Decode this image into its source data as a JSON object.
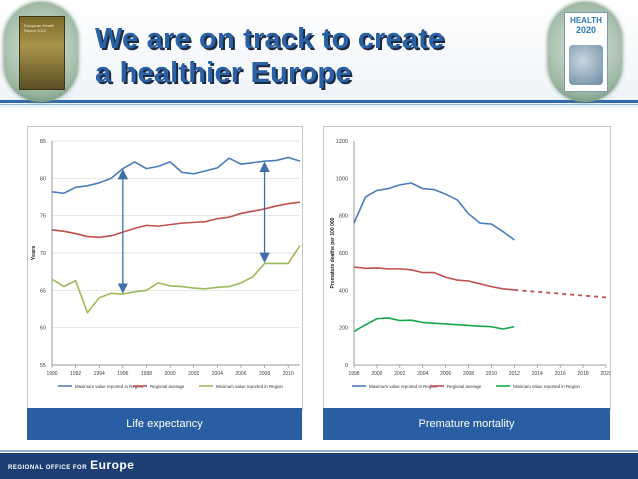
{
  "header": {
    "title_line1": "We are on track to create",
    "title_line2": "a healthier Europe",
    "right_badge_title1": "HEALTH",
    "right_badge_title2": "2020",
    "left_badge_text": "European Health Report 2012"
  },
  "footer": {
    "org_prefix": "REGIONAL OFFICE FOR",
    "org_name": "Europe"
  },
  "captions": {
    "left": "Life expectancy",
    "right": "Premature mortality"
  },
  "colors": {
    "max_series": "#4a7ebb",
    "avg_series": "#c0504d",
    "min_series": "#9bbb59",
    "min_series_right": "#17a84a",
    "arrow": "#3f6fa8",
    "caption_bar": "#2a5ea3"
  },
  "chart_data": [
    {
      "type": "line",
      "title": "Life expectancy",
      "xlabel": "",
      "ylabel": "Years",
      "x": [
        1990,
        1991,
        1992,
        1993,
        1994,
        1995,
        1996,
        1997,
        1998,
        1999,
        2000,
        2001,
        2002,
        2003,
        2004,
        2005,
        2006,
        2007,
        2008,
        2009,
        2010,
        2011
      ],
      "xticks": [
        "1990",
        "1992",
        "1994",
        "1996",
        "1998",
        "2000",
        "2002",
        "2004",
        "2006",
        "2008",
        "2010"
      ],
      "xlim": [
        1990,
        2011
      ],
      "ylim": [
        55,
        85
      ],
      "yticks": [
        "55",
        "60",
        "65",
        "70",
        "75",
        "80",
        "85"
      ],
      "series": [
        {
          "name": "Maximum value reported in Region",
          "values": [
            78.2,
            78.0,
            78.8,
            79.0,
            79.4,
            80.0,
            81.3,
            82.2,
            81.3,
            81.6,
            82.2,
            80.8,
            80.6,
            81.0,
            81.4,
            82.7,
            81.9,
            82.1,
            82.3,
            82.4,
            82.8,
            82.3
          ]
        },
        {
          "name": "Regional average",
          "values": [
            73.1,
            72.9,
            72.6,
            72.2,
            72.1,
            72.3,
            72.8,
            73.3,
            73.7,
            73.6,
            73.8,
            74.0,
            74.1,
            74.2,
            74.6,
            74.8,
            75.3,
            75.6,
            75.9,
            76.3,
            76.6,
            76.8
          ]
        },
        {
          "name": "Minimum value reported in Region",
          "values": [
            66.5,
            65.5,
            66.3,
            62.0,
            64.0,
            64.6,
            64.5,
            64.8,
            65.0,
            66.0,
            65.6,
            65.5,
            65.3,
            65.2,
            65.4,
            65.5,
            66.0,
            66.8,
            68.6,
            68.6,
            68.6,
            71.0
          ]
        }
      ],
      "annotations": [
        {
          "type": "double-arrow",
          "x": 1996,
          "from": 64.5,
          "to": 81.3
        },
        {
          "type": "double-arrow",
          "x": 2008,
          "from": 68.6,
          "to": 82.3
        }
      ],
      "legend": "bottom"
    },
    {
      "type": "line",
      "title": "Premature mortality",
      "xlabel": "",
      "ylabel": "Premature deaths per 100 000",
      "x": [
        1998,
        1999,
        2000,
        2001,
        2002,
        2003,
        2004,
        2005,
        2006,
        2007,
        2008,
        2009,
        2010,
        2011,
        2012
      ],
      "xticks": [
        "1998",
        "2000",
        "2002",
        "2004",
        "2006",
        "2008",
        "2010",
        "2012",
        "2014",
        "2016",
        "2018",
        "2020"
      ],
      "xlim": [
        1998,
        2020
      ],
      "ylim": [
        0,
        1200
      ],
      "yticks": [
        "0",
        "200",
        "400",
        "600",
        "800",
        "1000",
        "1200"
      ],
      "series": [
        {
          "name": "Maximum value reported in Region",
          "values": [
            760,
            900,
            935,
            945,
            965,
            975,
            945,
            940,
            915,
            885,
            810,
            760,
            755,
            715,
            670
          ]
        },
        {
          "name": "Regional average",
          "values": [
            525,
            518,
            520,
            515,
            515,
            510,
            495,
            495,
            470,
            455,
            450,
            435,
            420,
            408,
            402
          ]
        },
        {
          "name": "Minimum value reported in Region",
          "values": [
            180,
            215,
            248,
            252,
            238,
            240,
            228,
            224,
            220,
            216,
            212,
            208,
            205,
            193,
            205
          ]
        }
      ],
      "projection": {
        "name": "Regional average (projected)",
        "x": [
          2012,
          2014,
          2016,
          2018,
          2020
        ],
        "values": [
          402,
          392,
          382,
          372,
          362
        ],
        "style": "dashed"
      },
      "legend": "bottom"
    }
  ]
}
